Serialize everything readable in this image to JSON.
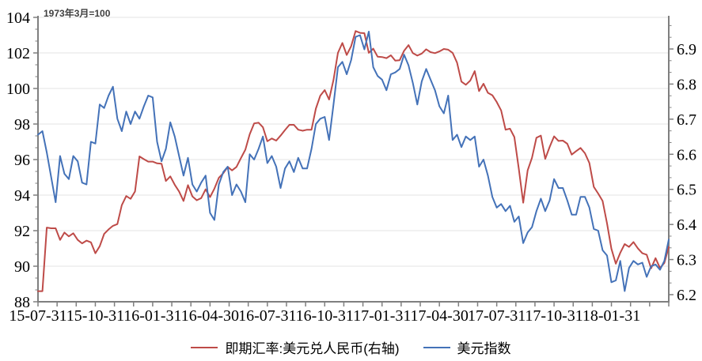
{
  "chart_data": {
    "type": "line",
    "annotation": "1973年3月=100",
    "x_unit": "date",
    "x_start": "2015-07-31",
    "x_step_days": 7,
    "x_tick_labels": [
      "15-07-31",
      "15-10-31",
      "16-01-31",
      "16-04-30",
      "16-07-31",
      "16-10-31",
      "17-01-31",
      "17-04-30",
      "17-07-31",
      "17-10-31",
      "18-01-31"
    ],
    "left_axis": {
      "min": 88,
      "max": 104,
      "ticks": [
        88,
        90,
        92,
        94,
        96,
        98,
        100,
        102,
        104
      ]
    },
    "right_axis": {
      "min": 6.2,
      "max": 6.9,
      "ticks": [
        6.2,
        6.3,
        6.4,
        6.5,
        6.6,
        6.7,
        6.8,
        6.9
      ]
    },
    "grid": "horizontal-only",
    "legend_position": "bottom-center",
    "series": [
      {
        "name": "即期汇率:美元兑人民币(右轴)",
        "axis": "right",
        "color": "#be4b48",
        "values": [
          6.21,
          6.21,
          6.391,
          6.389,
          6.389,
          6.356,
          6.377,
          6.366,
          6.375,
          6.356,
          6.346,
          6.354,
          6.349,
          6.318,
          6.338,
          6.373,
          6.386,
          6.396,
          6.401,
          6.455,
          6.481,
          6.473,
          6.494,
          6.594,
          6.586,
          6.579,
          6.579,
          6.574,
          6.573,
          6.524,
          6.537,
          6.513,
          6.494,
          6.467,
          6.512,
          6.48,
          6.469,
          6.475,
          6.5,
          6.478,
          6.502,
          6.533,
          6.546,
          6.564,
          6.554,
          6.564,
          6.589,
          6.613,
          6.657,
          6.688,
          6.69,
          6.677,
          6.637,
          6.645,
          6.639,
          6.653,
          6.669,
          6.684,
          6.684,
          6.67,
          6.667,
          6.67,
          6.67,
          6.73,
          6.767,
          6.783,
          6.756,
          6.812,
          6.889,
          6.917,
          6.883,
          6.908,
          6.951,
          6.946,
          6.945,
          6.889,
          6.901,
          6.878,
          6.877,
          6.874,
          6.882,
          6.867,
          6.868,
          6.895,
          6.911,
          6.888,
          6.881,
          6.887,
          6.899,
          6.891,
          6.888,
          6.893,
          6.9,
          6.898,
          6.889,
          6.861,
          6.807,
          6.798,
          6.81,
          6.837,
          6.78,
          6.801,
          6.775,
          6.768,
          6.749,
          6.725,
          6.67,
          6.673,
          6.649,
          6.559,
          6.462,
          6.554,
          6.59,
          6.647,
          6.653,
          6.587,
          6.621,
          6.651,
          6.638,
          6.639,
          6.63,
          6.599,
          6.609,
          6.618,
          6.603,
          6.575,
          6.507,
          6.488,
          6.467,
          6.403,
          6.331,
          6.288,
          6.319,
          6.344,
          6.336,
          6.35,
          6.332,
          6.318,
          6.314,
          6.275,
          6.304,
          6.276,
          6.29,
          6.336
        ]
      },
      {
        "name": "美元指数",
        "axis": "left",
        "color": "#4472b8",
        "values": [
          97.4,
          97.6,
          96.4,
          95.0,
          93.6,
          96.2,
          95.2,
          94.9,
          96.2,
          95.9,
          94.7,
          94.6,
          97.0,
          96.9,
          99.1,
          98.9,
          99.6,
          100.1,
          98.3,
          97.6,
          98.7,
          98.0,
          98.7,
          98.3,
          99.0,
          99.6,
          99.5,
          97.0,
          95.9,
          96.6,
          98.1,
          97.3,
          96.2,
          95.1,
          96.1,
          94.6,
          94.2,
          94.7,
          95.1,
          93.0,
          92.6,
          94.6,
          95.3,
          95.6,
          94.0,
          94.6,
          94.2,
          93.6,
          96.3,
          96.0,
          96.6,
          97.3,
          95.8,
          96.2,
          95.6,
          94.4,
          95.5,
          95.9,
          95.3,
          96.1,
          95.5,
          95.5,
          96.6,
          98.0,
          98.3,
          98.4,
          97.1,
          99.1,
          101.2,
          101.5,
          100.8,
          101.6,
          102.9,
          103.0,
          102.2,
          103.2,
          101.2,
          100.7,
          100.5,
          99.9,
          100.8,
          100.9,
          101.1,
          101.9,
          101.3,
          100.3,
          99.1,
          100.4,
          101.1,
          100.5,
          99.9,
          99.0,
          98.6,
          99.6,
          97.1,
          97.4,
          96.7,
          97.3,
          97.1,
          97.3,
          95.6,
          96.0,
          95.1,
          93.9,
          93.3,
          93.5,
          93.1,
          93.4,
          92.5,
          92.8,
          91.3,
          91.9,
          92.2,
          93.1,
          93.8,
          93.1,
          93.7,
          94.9,
          94.4,
          94.4,
          93.7,
          92.9,
          92.9,
          93.9,
          93.9,
          93.3,
          92.1,
          92.0,
          90.9,
          90.6,
          89.1,
          89.2,
          90.3,
          88.6,
          89.9,
          90.3,
          90.1,
          90.2,
          89.4,
          90.0,
          90.1,
          89.8,
          90.3,
          91.5
        ]
      }
    ]
  },
  "legend": [
    {
      "label": "即期汇率:美元兑人民币(右轴)",
      "color": "#be4b48"
    },
    {
      "label": "美元指数",
      "color": "#4472b8"
    }
  ],
  "colors": {
    "axis": "#7f7f7f",
    "grid": "#e3e3e3",
    "text": "#000000",
    "annotation": "#404040"
  }
}
